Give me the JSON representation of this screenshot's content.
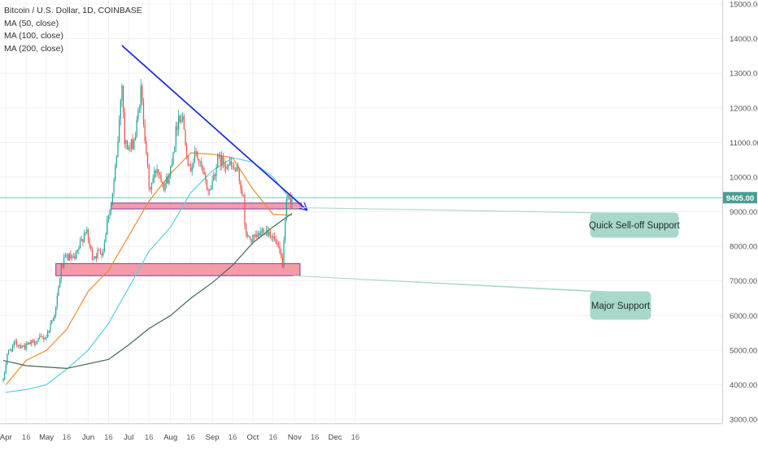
{
  "chart_data": {
    "type": "candlestick",
    "title": "Bitcoin / U.S. Dollar, 1D, COINBASE",
    "indicators": [
      "MA (50, close)",
      "MA (100, close)",
      "MA (200, close)"
    ],
    "x_ticks": [
      "Apr",
      "16",
      "May",
      "16",
      "Jun",
      "16",
      "Jul",
      "16",
      "Aug",
      "16",
      "Sep",
      "16",
      "Oct",
      "16",
      "Nov",
      "16",
      "Dec",
      "16"
    ],
    "y_ticks": [
      "15000.00",
      "14000.00",
      "13000.00",
      "12000.00",
      "11000.00",
      "10000.00",
      "9000.00",
      "8000.00",
      "7000.00",
      "6000.00",
      "5000.00",
      "4000.00",
      "3000.00"
    ],
    "ylim": [
      2800,
      15100
    ],
    "log_scale": false,
    "grid": true,
    "current_price": {
      "label": "9405.00",
      "value": 9405
    },
    "price_path": [
      [
        "2019-03-30",
        4100
      ],
      [
        "2019-04-02",
        4900
      ],
      [
        "2019-04-08",
        5200
      ],
      [
        "2019-04-15",
        5100
      ],
      [
        "2019-04-25",
        5300
      ],
      [
        "2019-05-01",
        5400
      ],
      [
        "2019-05-08",
        6200
      ],
      [
        "2019-05-12",
        7400
      ],
      [
        "2019-05-16",
        7700
      ],
      [
        "2019-05-22",
        7600
      ],
      [
        "2019-05-30",
        8500
      ],
      [
        "2019-06-04",
        7700
      ],
      [
        "2019-06-08",
        7800
      ],
      [
        "2019-06-12",
        7900
      ],
      [
        "2019-06-16",
        9000
      ],
      [
        "2019-06-18",
        9200
      ],
      [
        "2019-06-22",
        10500
      ],
      [
        "2019-06-26",
        12800
      ],
      [
        "2019-06-28",
        11000
      ],
      [
        "2019-07-02",
        10800
      ],
      [
        "2019-07-06",
        11200
      ],
      [
        "2019-07-10",
        12500
      ],
      [
        "2019-07-14",
        10800
      ],
      [
        "2019-07-16",
        9600
      ],
      [
        "2019-07-22",
        10300
      ],
      [
        "2019-07-27",
        9800
      ],
      [
        "2019-07-31",
        10000
      ],
      [
        "2019-08-03",
        10800
      ],
      [
        "2019-08-07",
        11800
      ],
      [
        "2019-08-10",
        11700
      ],
      [
        "2019-08-15",
        10200
      ],
      [
        "2019-08-20",
        10700
      ],
      [
        "2019-08-28",
        9700
      ],
      [
        "2019-08-30",
        9600
      ],
      [
        "2019-09-05",
        10500
      ],
      [
        "2019-09-12",
        10400
      ],
      [
        "2019-09-20",
        10100
      ],
      [
        "2019-09-24",
        9400
      ],
      [
        "2019-09-25",
        8500
      ],
      [
        "2019-09-28",
        8200
      ],
      [
        "2019-10-03",
        8200
      ],
      [
        "2019-10-09",
        8500
      ],
      [
        "2019-10-14",
        8400
      ],
      [
        "2019-10-19",
        8000
      ],
      [
        "2019-10-23",
        7500
      ],
      [
        "2019-10-25",
        8600
      ],
      [
        "2019-10-26",
        9300
      ],
      [
        "2019-10-30",
        9405
      ]
    ],
    "moving_averages": [
      {
        "name": "MA (50, close)",
        "color": "#f28a2e",
        "points": [
          [
            "2019-04-01",
            4000
          ],
          [
            "2019-04-16",
            4700
          ],
          [
            "2019-05-01",
            4990
          ],
          [
            "2019-05-16",
            5600
          ],
          [
            "2019-06-01",
            6700
          ],
          [
            "2019-06-16",
            7300
          ],
          [
            "2019-07-01",
            8300
          ],
          [
            "2019-07-16",
            9300
          ],
          [
            "2019-08-01",
            10100
          ],
          [
            "2019-08-16",
            10700
          ],
          [
            "2019-09-01",
            10660
          ],
          [
            "2019-09-16",
            10560
          ],
          [
            "2019-10-01",
            9650
          ],
          [
            "2019-10-16",
            8920
          ],
          [
            "2019-10-30",
            8900
          ]
        ]
      },
      {
        "name": "MA (100, close)",
        "color": "#5bcde0",
        "points": [
          [
            "2019-04-01",
            3780
          ],
          [
            "2019-04-16",
            3860
          ],
          [
            "2019-05-01",
            4000
          ],
          [
            "2019-05-16",
            4450
          ],
          [
            "2019-06-01",
            5000
          ],
          [
            "2019-06-16",
            5770
          ],
          [
            "2019-07-01",
            6800
          ],
          [
            "2019-07-16",
            7850
          ],
          [
            "2019-08-01",
            8550
          ],
          [
            "2019-08-16",
            9550
          ],
          [
            "2019-09-01",
            10180
          ],
          [
            "2019-09-16",
            10560
          ],
          [
            "2019-10-01",
            10430
          ],
          [
            "2019-10-16",
            10000
          ],
          [
            "2019-10-30",
            9300
          ]
        ]
      },
      {
        "name": "MA (200, close)",
        "color": "#3d6b4f",
        "points": [
          [
            "2019-03-30",
            4700
          ],
          [
            "2019-04-16",
            4550
          ],
          [
            "2019-05-16",
            4470
          ],
          [
            "2019-06-16",
            4730
          ],
          [
            "2019-07-01",
            5150
          ],
          [
            "2019-07-16",
            5620
          ],
          [
            "2019-08-01",
            6000
          ],
          [
            "2019-08-16",
            6500
          ],
          [
            "2019-09-01",
            6950
          ],
          [
            "2019-09-16",
            7450
          ],
          [
            "2019-10-01",
            8100
          ],
          [
            "2019-10-16",
            8560
          ],
          [
            "2019-10-30",
            8950
          ]
        ]
      }
    ],
    "annotations": [
      {
        "label": "Quick Sell-off Support",
        "zone": [
          9080,
          9250
        ],
        "from": "2019-06-18",
        "to": "2019-11-06"
      },
      {
        "label": "Major Support",
        "zone": [
          7150,
          7500
        ],
        "from": "2019-05-08",
        "to": "2019-11-05"
      }
    ],
    "trend_line": {
      "from": [
        "2019-06-26",
        13800
      ],
      "to": [
        "2019-11-10",
        9050
      ]
    }
  }
}
